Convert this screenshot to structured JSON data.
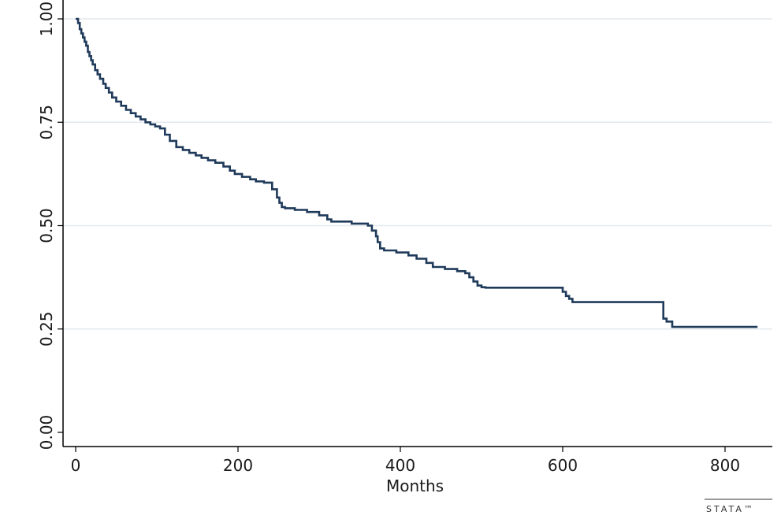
{
  "chart_data": {
    "type": "line",
    "title": "",
    "xlabel": "Months",
    "ylabel": "",
    "xlim": [
      0,
      840
    ],
    "ylim": [
      0,
      1
    ],
    "x_ticks": [
      0,
      200,
      400,
      600,
      800
    ],
    "y_ticks": [
      0,
      0.25,
      0.5,
      0.75,
      1
    ],
    "x_tick_labels": [
      "0",
      "200",
      "400",
      "600",
      "800"
    ],
    "y_tick_labels": [
      "0.00",
      "0.25",
      "0.50",
      "0.75",
      "1.00"
    ],
    "grid": "horizontal",
    "legend": "none",
    "line_color": "#1f3a5a",
    "step": true,
    "series": [
      {
        "x": [
          0,
          3,
          5,
          7,
          9,
          11,
          13,
          15,
          17,
          19,
          21,
          24,
          27,
          30,
          34,
          37,
          41,
          45,
          50,
          56,
          62,
          68,
          74,
          80,
          86,
          92,
          98,
          104,
          110,
          116,
          124,
          132,
          140,
          148,
          155,
          163,
          172,
          182,
          190,
          196,
          205,
          215,
          222,
          232,
          242,
          248,
          251,
          254,
          258,
          270,
          285,
          300,
          310,
          315,
          340,
          360,
          365,
          370,
          372,
          375,
          380,
          395,
          410,
          420,
          432,
          440,
          455,
          470,
          480,
          485,
          490,
          495,
          500,
          505,
          520,
          580,
          600,
          604,
          608,
          612,
          620,
          700,
          724,
          728,
          735,
          760,
          840
        ],
        "y": [
          1.0,
          0.99,
          0.975,
          0.965,
          0.955,
          0.945,
          0.935,
          0.92,
          0.91,
          0.9,
          0.89,
          0.876,
          0.866,
          0.855,
          0.843,
          0.833,
          0.822,
          0.81,
          0.8,
          0.79,
          0.78,
          0.772,
          0.764,
          0.757,
          0.75,
          0.745,
          0.74,
          0.735,
          0.72,
          0.705,
          0.69,
          0.683,
          0.676,
          0.67,
          0.664,
          0.658,
          0.652,
          0.643,
          0.633,
          0.625,
          0.618,
          0.612,
          0.607,
          0.604,
          0.588,
          0.568,
          0.555,
          0.545,
          0.542,
          0.538,
          0.533,
          0.525,
          0.515,
          0.51,
          0.505,
          0.5,
          0.488,
          0.474,
          0.46,
          0.445,
          0.44,
          0.435,
          0.428,
          0.42,
          0.41,
          0.4,
          0.395,
          0.39,
          0.385,
          0.375,
          0.365,
          0.355,
          0.351,
          0.35,
          0.35,
          0.35,
          0.34,
          0.33,
          0.323,
          0.315,
          0.315,
          0.315,
          0.275,
          0.268,
          0.255,
          0.255,
          0.255
        ]
      }
    ]
  },
  "watermark": "STATA™"
}
